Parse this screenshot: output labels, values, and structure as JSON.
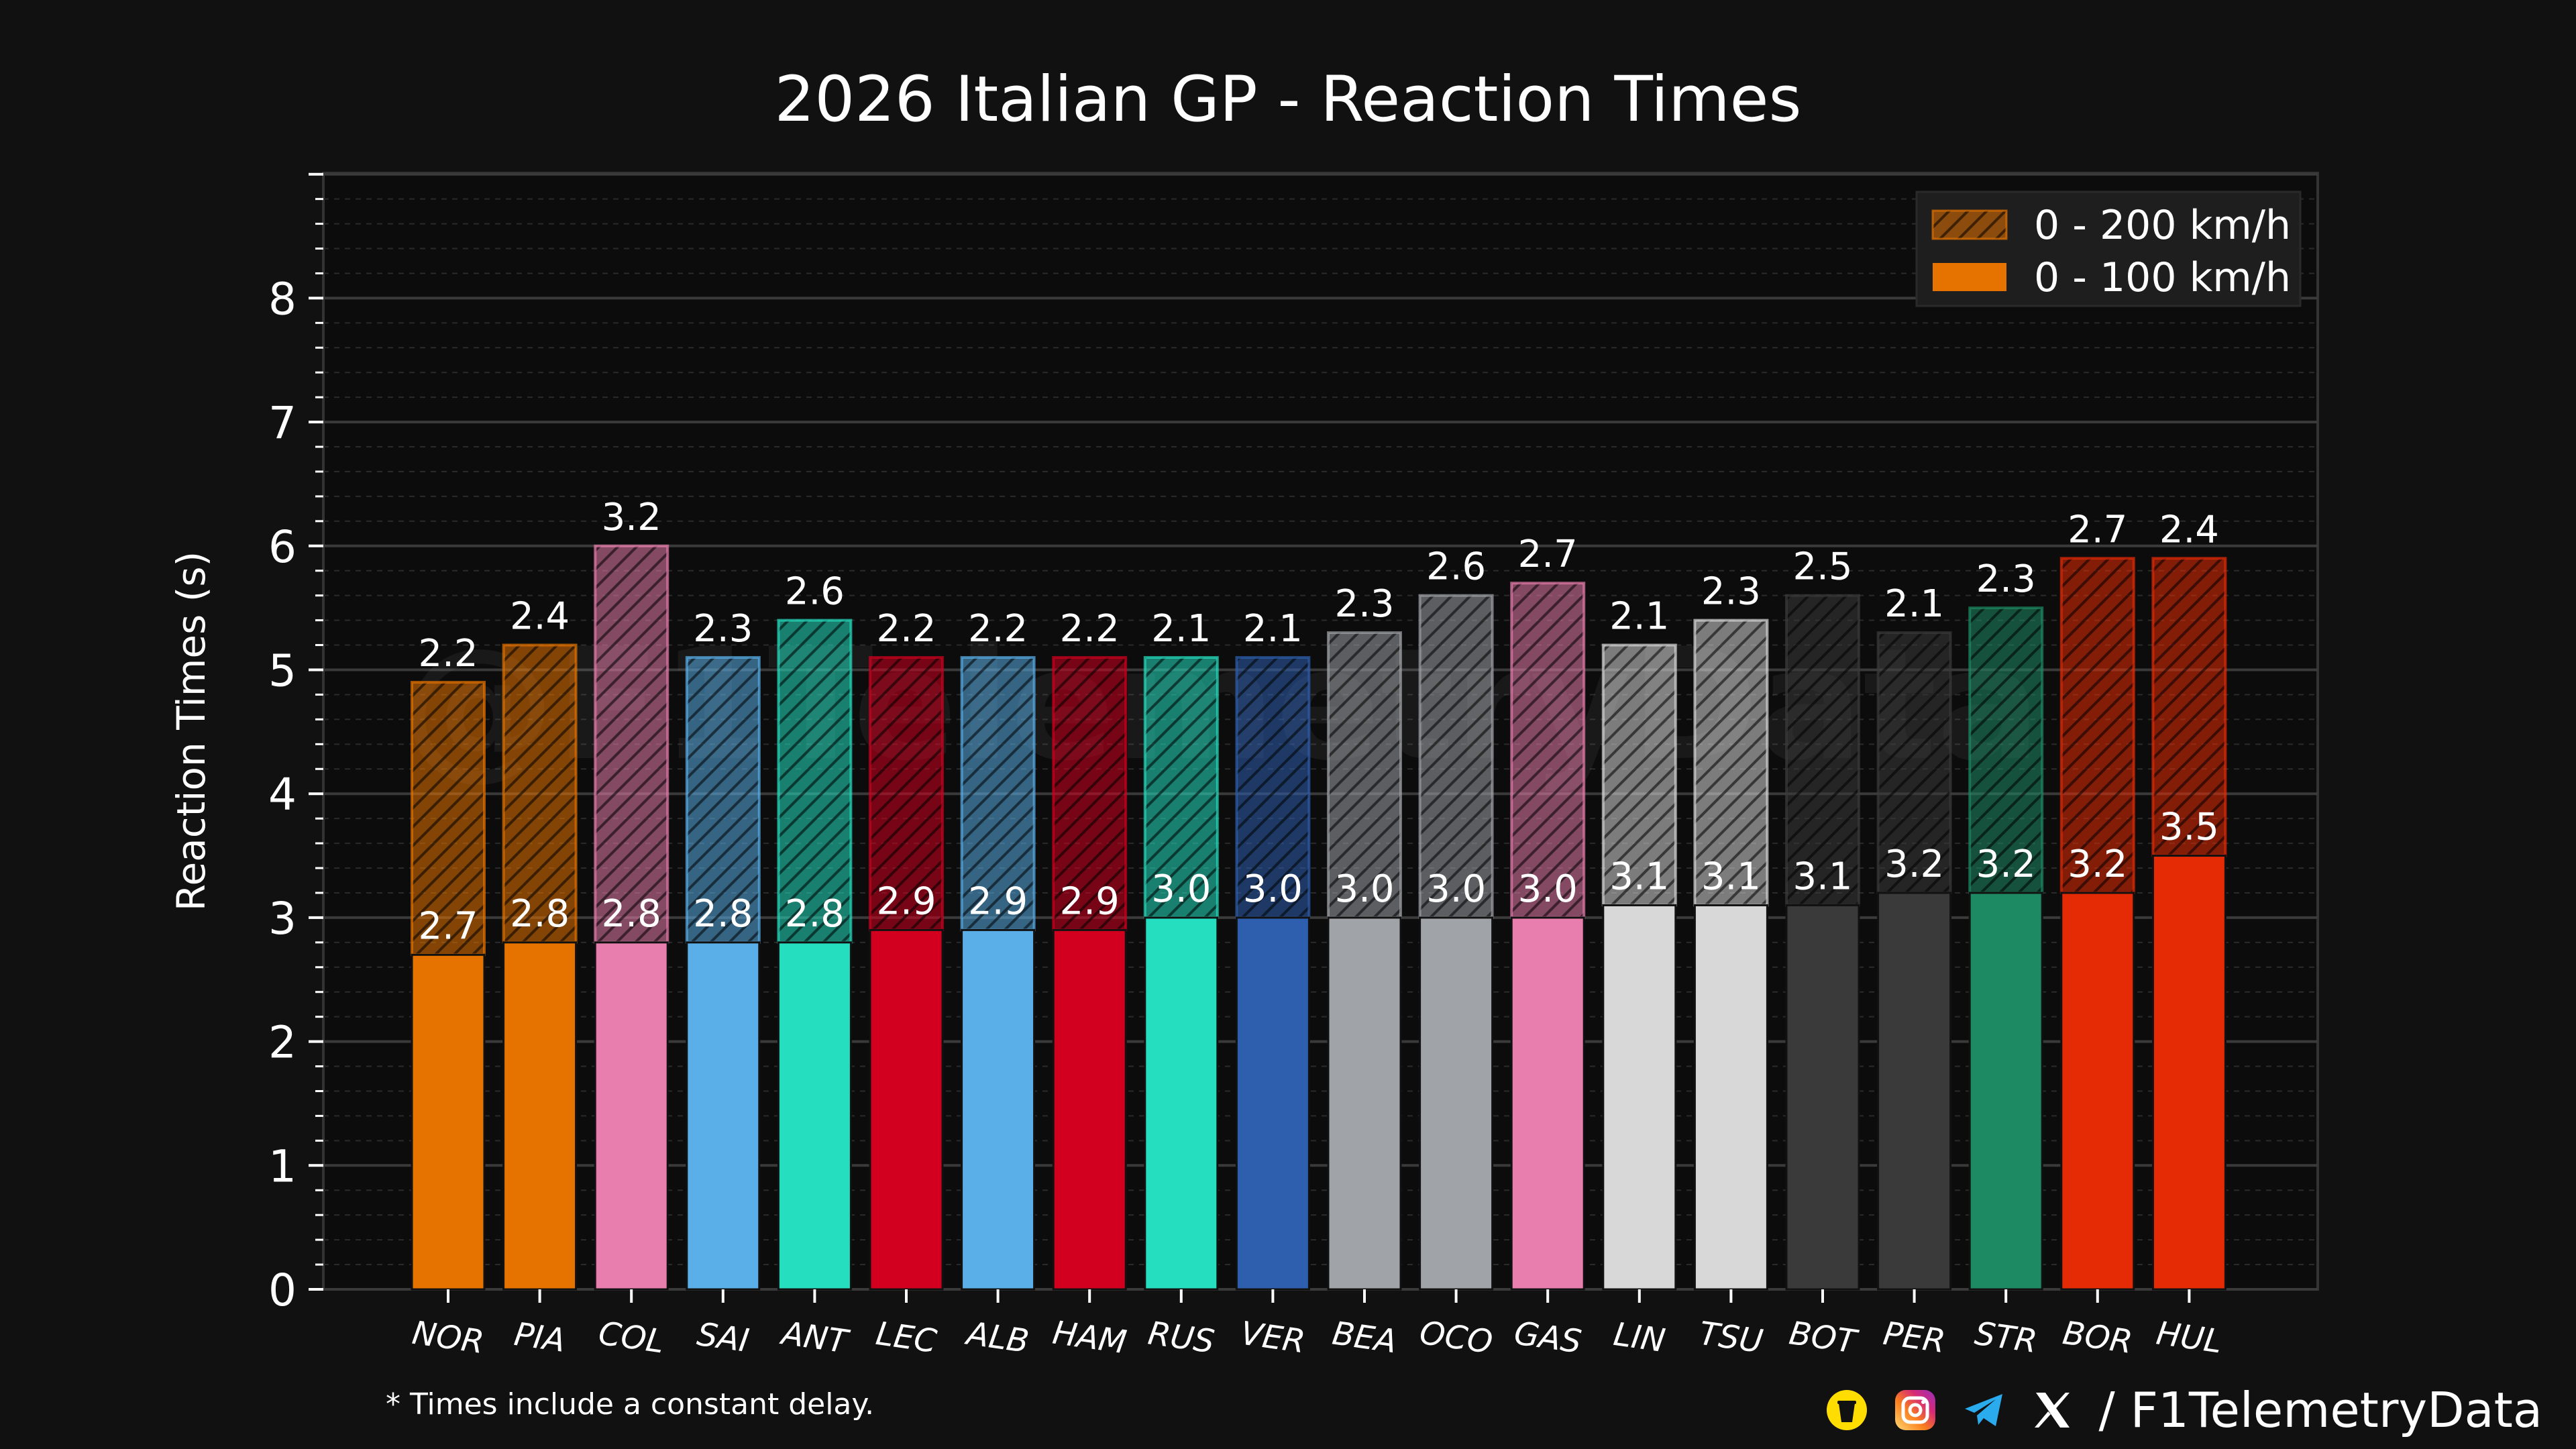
{
  "chart_data": {
    "type": "bar",
    "title": "2026 Italian GP - Reaction Times",
    "ylabel": "Reaction Times (s)",
    "xlabel": "",
    "ylim": [
      0,
      9
    ],
    "yticks": [
      0,
      1,
      2,
      3,
      4,
      5,
      6,
      7,
      8
    ],
    "grid": true,
    "stacked": true,
    "legend_position": "top-right",
    "categories": [
      "NOR",
      "PIA",
      "COL",
      "SAI",
      "ANT",
      "LEC",
      "ALB",
      "HAM",
      "RUS",
      "VER",
      "BEA",
      "OCO",
      "GAS",
      "LIN",
      "TSU",
      "BOT",
      "PER",
      "STR",
      "BOR",
      "HUL"
    ],
    "colors": [
      "#E67300",
      "#E67300",
      "#E87EAD",
      "#5AAFE8",
      "#25DEC0",
      "#D2001E",
      "#5AAFE8",
      "#D2001E",
      "#25DEC0",
      "#2E5FAE",
      "#A0A3A7",
      "#A0A3A7",
      "#E87EAD",
      "#D8D8D8",
      "#D8D8D8",
      "#3A3A3A",
      "#3A3A3A",
      "#1E8A64",
      "#E52B06",
      "#E52B06"
    ],
    "series": [
      {
        "name": "0 - 100 km/h",
        "values": [
          2.7,
          2.8,
          2.8,
          2.8,
          2.8,
          2.9,
          2.9,
          2.9,
          3.0,
          3.0,
          3.0,
          3.0,
          3.0,
          3.1,
          3.1,
          3.1,
          3.2,
          3.2,
          3.2,
          3.5
        ]
      },
      {
        "name": "0 - 200 km/h",
        "values": [
          2.2,
          2.4,
          3.2,
          2.3,
          2.6,
          2.2,
          2.2,
          2.2,
          2.1,
          2.1,
          2.3,
          2.6,
          2.7,
          2.1,
          2.3,
          2.5,
          2.1,
          2.3,
          2.7,
          2.4
        ]
      }
    ]
  },
  "watermark": "@F1TelemetryData",
  "footnote": "* Times include a constant delay.",
  "footer": {
    "icons": [
      "coffee-cup-icon",
      "instagram-icon",
      "telegram-icon",
      "x-icon"
    ],
    "handle": "/ F1TelemetryData"
  }
}
